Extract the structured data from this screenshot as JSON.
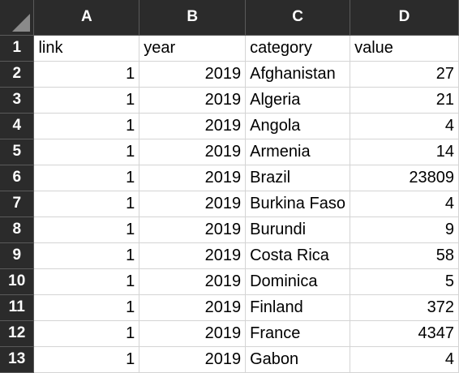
{
  "columns": [
    "A",
    "B",
    "C",
    "D"
  ],
  "rows": [
    {
      "num": "1",
      "a": "link",
      "b": "year",
      "c": "category",
      "d": "value"
    },
    {
      "num": "2",
      "a": "1",
      "b": "2019",
      "c": "Afghanistan",
      "d": "27"
    },
    {
      "num": "3",
      "a": "1",
      "b": "2019",
      "c": "Algeria",
      "d": "21"
    },
    {
      "num": "4",
      "a": "1",
      "b": "2019",
      "c": "Angola",
      "d": "4"
    },
    {
      "num": "5",
      "a": "1",
      "b": "2019",
      "c": "Armenia",
      "d": "14"
    },
    {
      "num": "6",
      "a": "1",
      "b": "2019",
      "c": "Brazil",
      "d": "23809"
    },
    {
      "num": "7",
      "a": "1",
      "b": "2019",
      "c": "Burkina Faso",
      "d": "4"
    },
    {
      "num": "8",
      "a": "1",
      "b": "2019",
      "c": "Burundi",
      "d": "9"
    },
    {
      "num": "9",
      "a": "1",
      "b": "2019",
      "c": "Costa Rica",
      "d": "58"
    },
    {
      "num": "10",
      "a": "1",
      "b": "2019",
      "c": "Dominica",
      "d": "5"
    },
    {
      "num": "11",
      "a": "1",
      "b": "2019",
      "c": "Finland",
      "d": "372"
    },
    {
      "num": "12",
      "a": "1",
      "b": "2019",
      "c": "France",
      "d": "4347"
    },
    {
      "num": "13",
      "a": "1",
      "b": "2019",
      "c": "Gabon",
      "d": "4"
    }
  ],
  "colors": {
    "header_bg": "#2b2b2b",
    "header_text": "#ffffff",
    "grid": "#d4d4d4"
  }
}
